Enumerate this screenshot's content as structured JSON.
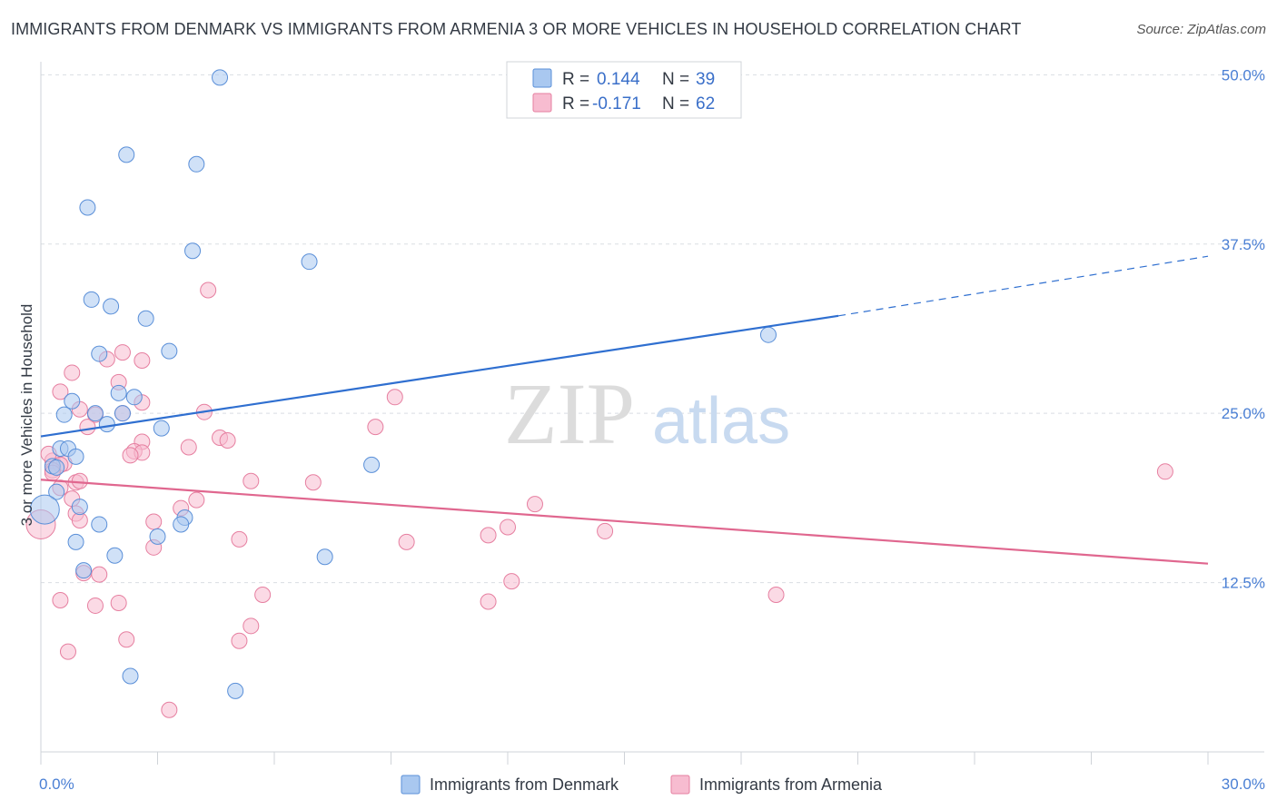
{
  "title": "IMMIGRANTS FROM DENMARK VS IMMIGRANTS FROM ARMENIA 3 OR MORE VEHICLES IN HOUSEHOLD CORRELATION CHART",
  "source": "Source: ZipAtlas.com",
  "watermark": {
    "zip": "ZIP",
    "atlas": "atlas"
  },
  "colors": {
    "denmark_fill": "#a9c8f0",
    "denmark_stroke": "#5a8fd8",
    "denmark_line": "#2f6fd0",
    "armenia_fill": "#f7bcd0",
    "armenia_stroke": "#e67fa0",
    "armenia_line": "#e0678f",
    "tick_text": "#4a7fd4",
    "grid": "#d9dde3"
  },
  "legend": {
    "r_label": "R =",
    "n_label": "N =",
    "rows": [
      {
        "series": "denmark",
        "r": "0.144",
        "n": "39"
      },
      {
        "series": "armenia",
        "r": "-0.171",
        "n": "62"
      }
    ]
  },
  "chart_data": {
    "type": "scatter",
    "title": "IMMIGRANTS FROM DENMARK VS IMMIGRANTS FROM ARMENIA 3 OR MORE VEHICLES IN HOUSEHOLD CORRELATION CHART",
    "xlabel": "",
    "ylabel": "3 or more Vehicles in Household",
    "xlim": [
      0,
      30
    ],
    "ylim": [
      0,
      51.5
    ],
    "x_tick_labels": [
      {
        "value": 0,
        "label": "0.0%"
      },
      {
        "value": 30,
        "label": "30.0%"
      }
    ],
    "y_ticks": [
      {
        "value": 12.5,
        "label": "12.5%"
      },
      {
        "value": 25.0,
        "label": "25.0%"
      },
      {
        "value": 37.5,
        "label": "37.5%"
      },
      {
        "value": 50.0,
        "label": "50.0%"
      }
    ],
    "grid": true,
    "legend_position": "top-center",
    "series": [
      {
        "key": "denmark",
        "name": "Immigrants from Denmark",
        "trend": {
          "x0": 0,
          "y0": 23.3,
          "x1": 20.5,
          "y1": 32.2,
          "dashed_to_x": 30,
          "dashed_to_y": 36.6
        },
        "points": [
          [
            4.6,
            49.8
          ],
          [
            2.2,
            44.1
          ],
          [
            4.0,
            43.4
          ],
          [
            1.2,
            40.2
          ],
          [
            3.9,
            37.0
          ],
          [
            6.9,
            36.2
          ],
          [
            1.3,
            33.4
          ],
          [
            1.8,
            32.9
          ],
          [
            2.7,
            32.0
          ],
          [
            3.3,
            29.6
          ],
          [
            1.5,
            29.4
          ],
          [
            2.0,
            26.5
          ],
          [
            2.4,
            26.2
          ],
          [
            0.8,
            25.9
          ],
          [
            0.6,
            24.9
          ],
          [
            1.4,
            25.0
          ],
          [
            2.1,
            25.0
          ],
          [
            1.7,
            24.2
          ],
          [
            3.1,
            23.9
          ],
          [
            0.5,
            22.4
          ],
          [
            0.7,
            22.4
          ],
          [
            0.9,
            21.8
          ],
          [
            0.3,
            21.1
          ],
          [
            0.4,
            21.0
          ],
          [
            8.5,
            21.2
          ],
          [
            0.4,
            19.2
          ],
          [
            0.1,
            17.9
          ],
          [
            1.0,
            18.1
          ],
          [
            3.7,
            17.3
          ],
          [
            1.5,
            16.8
          ],
          [
            3.6,
            16.8
          ],
          [
            3.0,
            15.9
          ],
          [
            0.9,
            15.5
          ],
          [
            1.9,
            14.5
          ],
          [
            7.3,
            14.4
          ],
          [
            1.1,
            13.4
          ],
          [
            18.7,
            30.8
          ],
          [
            2.3,
            5.6
          ],
          [
            5.0,
            4.5
          ]
        ]
      },
      {
        "key": "armenia",
        "name": "Immigrants from Armenia",
        "trend": {
          "x0": 0,
          "y0": 20.1,
          "x1": 30,
          "y1": 13.9
        },
        "points": [
          [
            4.3,
            34.1
          ],
          [
            2.1,
            29.5
          ],
          [
            1.7,
            29.0
          ],
          [
            2.6,
            28.9
          ],
          [
            0.8,
            28.0
          ],
          [
            2.0,
            27.3
          ],
          [
            0.5,
            26.6
          ],
          [
            9.1,
            26.2
          ],
          [
            2.6,
            25.8
          ],
          [
            1.0,
            25.3
          ],
          [
            4.2,
            25.1
          ],
          [
            1.4,
            24.9
          ],
          [
            2.1,
            25.0
          ],
          [
            8.6,
            24.0
          ],
          [
            1.2,
            24.0
          ],
          [
            4.6,
            23.2
          ],
          [
            4.8,
            23.0
          ],
          [
            2.6,
            22.9
          ],
          [
            2.4,
            22.2
          ],
          [
            2.6,
            22.1
          ],
          [
            2.3,
            21.9
          ],
          [
            0.3,
            21.5
          ],
          [
            0.6,
            21.3
          ],
          [
            0.5,
            21.2
          ],
          [
            0.3,
            20.8
          ],
          [
            0.3,
            20.6
          ],
          [
            5.4,
            20.0
          ],
          [
            7.0,
            19.9
          ],
          [
            0.9,
            19.9
          ],
          [
            0.5,
            19.5
          ],
          [
            4.0,
            18.6
          ],
          [
            0.8,
            18.7
          ],
          [
            12.7,
            18.3
          ],
          [
            3.6,
            18.0
          ],
          [
            0.9,
            17.6
          ],
          [
            1.0,
            17.1
          ],
          [
            0.0,
            16.8
          ],
          [
            2.9,
            17.0
          ],
          [
            12.0,
            16.6
          ],
          [
            14.5,
            16.3
          ],
          [
            11.5,
            16.0
          ],
          [
            5.1,
            15.7
          ],
          [
            9.4,
            15.5
          ],
          [
            2.9,
            15.1
          ],
          [
            1.1,
            13.2
          ],
          [
            1.5,
            13.1
          ],
          [
            12.1,
            12.6
          ],
          [
            5.7,
            11.6
          ],
          [
            18.9,
            11.6
          ],
          [
            0.5,
            11.2
          ],
          [
            2.0,
            11.0
          ],
          [
            11.5,
            11.1
          ],
          [
            1.4,
            10.8
          ],
          [
            5.4,
            9.3
          ],
          [
            2.2,
            8.3
          ],
          [
            5.1,
            8.2
          ],
          [
            0.7,
            7.4
          ],
          [
            3.3,
            3.1
          ],
          [
            28.9,
            20.7
          ],
          [
            0.2,
            22.0
          ],
          [
            1.0,
            20.0
          ],
          [
            3.8,
            22.5
          ]
        ]
      }
    ]
  }
}
